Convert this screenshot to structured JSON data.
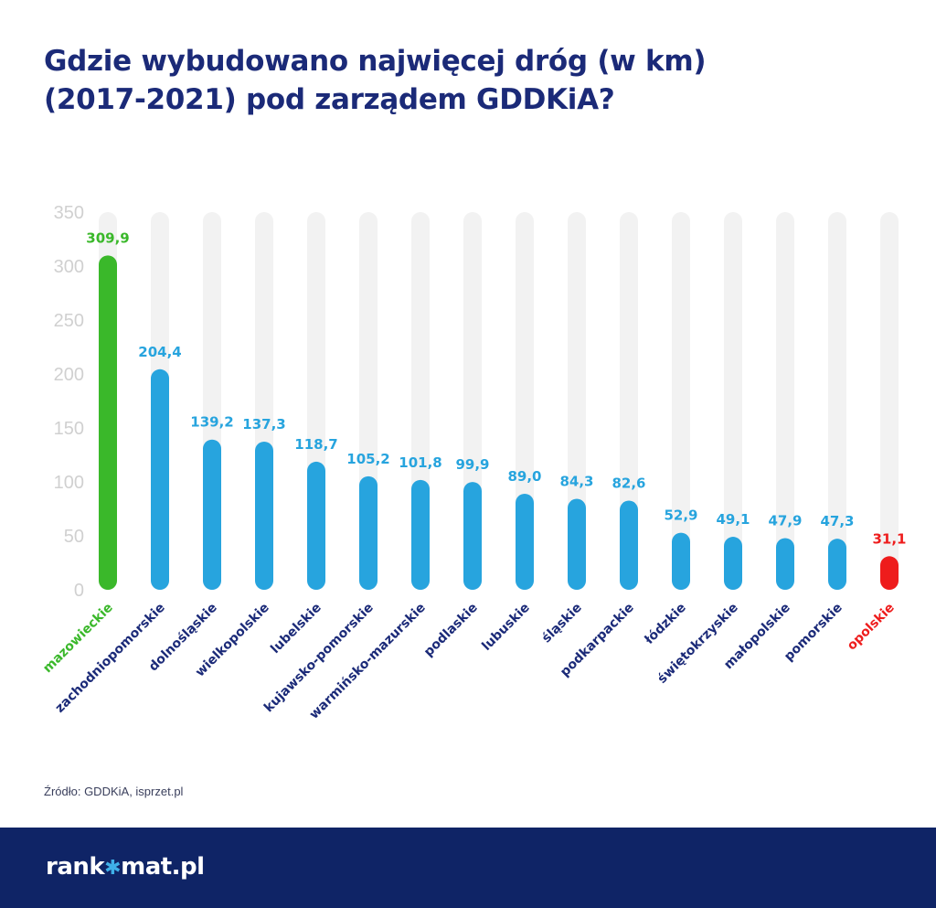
{
  "title_line1": "Gdzie wybudowano najwięcej dróg (w km)",
  "title_line2": "(2017-2021) pod zarządem GDDKiA?",
  "source": "Źródło: GDDKiA, isprzet.pl",
  "logo": {
    "before": "rank",
    "star": "✱",
    "after": "mat.pl"
  },
  "colors": {
    "highlight_max": "#3ab82a",
    "highlight_min": "#ee1c1c",
    "bar": "#27a4de",
    "track": "#f2f2f2",
    "label": "#1b2a78",
    "axis_tick": "#d0d0d0",
    "footer": "#0f2466"
  },
  "chart_data": {
    "type": "bar",
    "categories": [
      "mazowieckie",
      "zachodniopomorskie",
      "dolnośląskie",
      "wielkopolskie",
      "lubelskie",
      "kujawsko-pomorskie",
      "warmińsko-mazurskie",
      "podlaskie",
      "lubuskie",
      "śląskie",
      "podkarpackie",
      "łódzkie",
      "świętokrzyskie",
      "małopolskie",
      "pomorskie",
      "opolskie"
    ],
    "values": [
      309.9,
      204.4,
      139.2,
      137.3,
      118.7,
      105.2,
      101.8,
      99.9,
      89.0,
      84.3,
      82.6,
      52.9,
      49.1,
      47.9,
      47.3,
      31.1
    ],
    "value_labels": [
      "309,9",
      "204,4",
      "139,2",
      "137,3",
      "118,7",
      "105,2",
      "101,8",
      "99,9",
      "89,0",
      "84,3",
      "82,6",
      "52,9",
      "49,1",
      "47,9",
      "47,3",
      "31,1"
    ],
    "yticks": [
      0,
      50,
      100,
      150,
      200,
      250,
      300,
      350
    ],
    "ylim": [
      0,
      350
    ],
    "highlight_max_index": 0,
    "highlight_min_index": 15,
    "grid": false
  }
}
